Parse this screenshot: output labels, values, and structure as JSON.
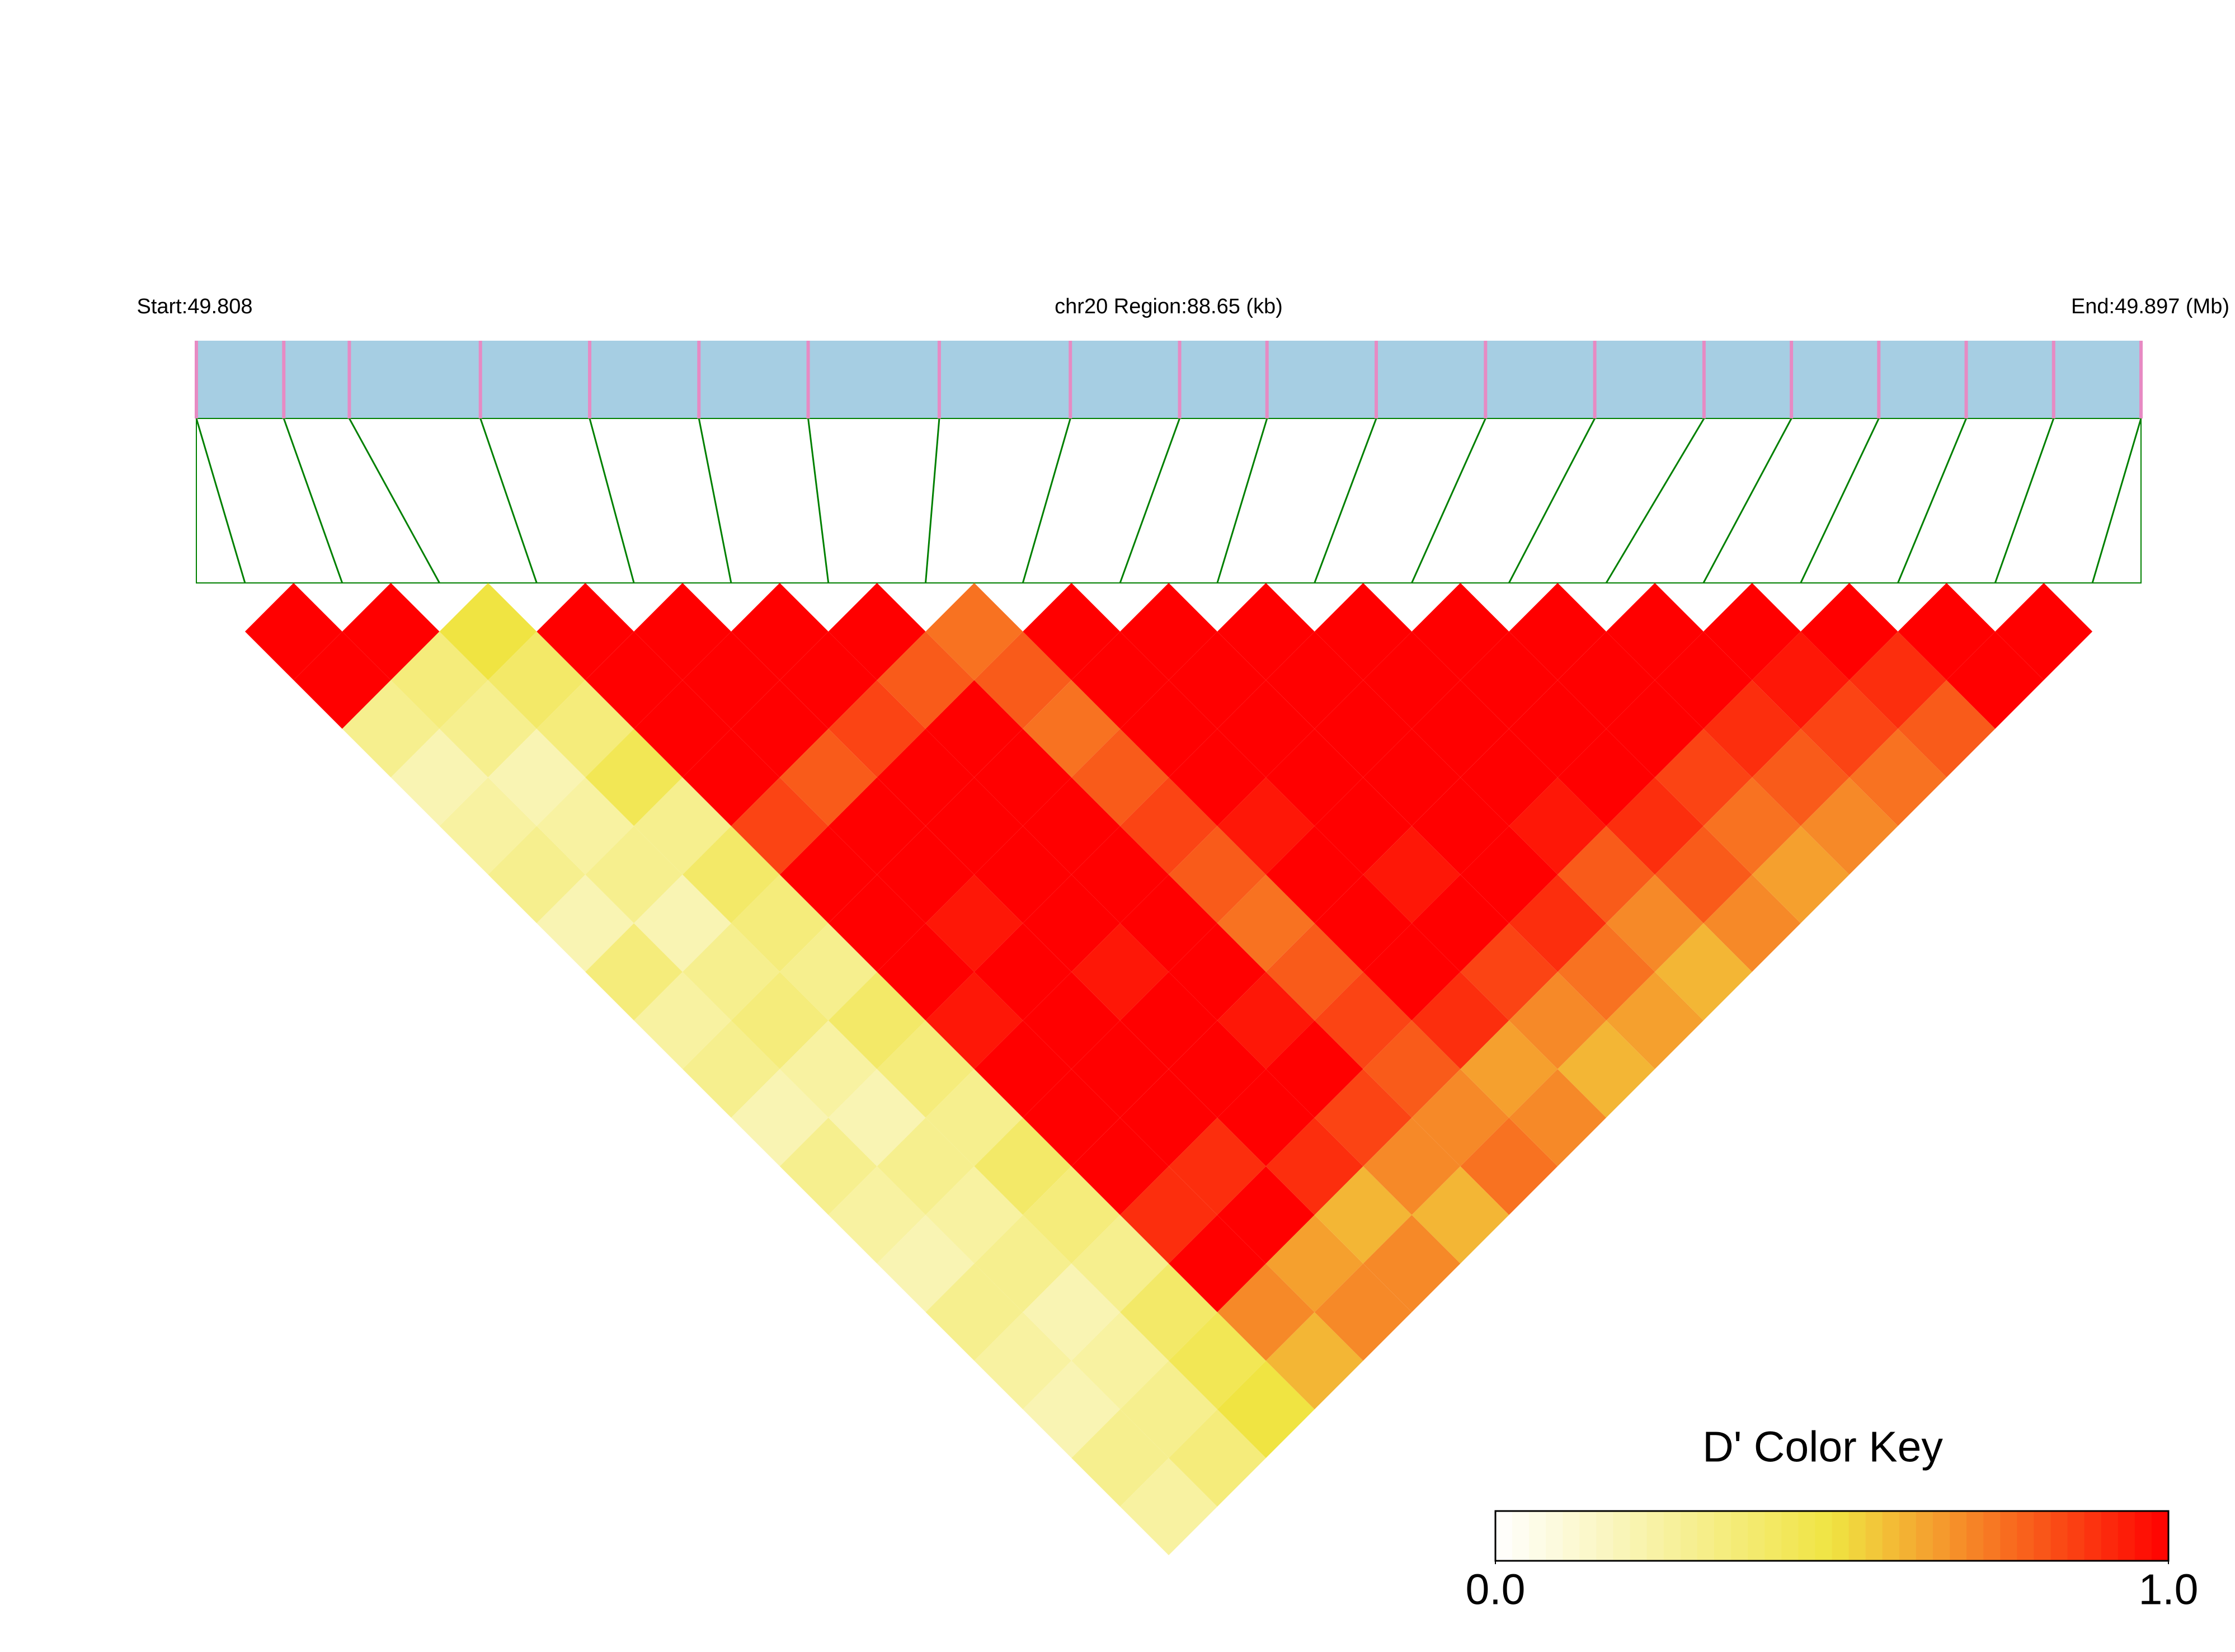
{
  "chart_data": {
    "type": "ld_heatmap",
    "start_label": "Start:49.808",
    "region_label": "chr20 Region:88.65 (kb)",
    "end_label": "End:49.897 (Mb)",
    "key_title": "D' Color Key",
    "xlim": [
      49.808,
      49.897
    ],
    "positions": [
      49.808,
      49.812,
      49.815,
      49.821,
      49.826,
      49.831,
      49.836,
      49.842,
      49.848,
      49.853,
      49.857,
      49.862,
      49.867,
      49.872,
      49.877,
      49.881,
      49.885,
      49.889,
      49.893,
      49.897
    ],
    "ld": [
      [
        1.0,
        1.0,
        0.3,
        0.2,
        0.25,
        0.3,
        0.2,
        0.35,
        0.25,
        0.3,
        0.2,
        0.3,
        0.25,
        0.2,
        0.3,
        0.25,
        0.2,
        0.3,
        0.25
      ],
      [
        1.0,
        0.35,
        0.3,
        0.2,
        0.25,
        0.3,
        0.2,
        0.3,
        0.35,
        0.25,
        0.2,
        0.3,
        0.25,
        0.3,
        0.2,
        0.25,
        0.3,
        0.35
      ],
      [
        0.5,
        0.4,
        0.35,
        0.45,
        0.3,
        0.4,
        0.35,
        0.3,
        0.4,
        0.35,
        0.3,
        0.4,
        0.35,
        0.3,
        0.4,
        0.45,
        0.5
      ],
      [
        1.0,
        1.0,
        1.0,
        1.0,
        0.85,
        1.0,
        1.0,
        1.0,
        0.95,
        1.0,
        1.0,
        1.0,
        0.9,
        1.0,
        0.7,
        0.6
      ],
      [
        1.0,
        1.0,
        1.0,
        0.8,
        1.0,
        1.0,
        0.95,
        1.0,
        1.0,
        1.0,
        1.0,
        0.9,
        1.0,
        0.65,
        0.7
      ],
      [
        1.0,
        1.0,
        0.85,
        1.0,
        1.0,
        1.0,
        1.0,
        0.95,
        1.0,
        1.0,
        1.0,
        0.9,
        0.6,
        0.7
      ],
      [
        1.0,
        0.8,
        1.0,
        1.0,
        1.0,
        1.0,
        1.0,
        1.0,
        0.95,
        1.0,
        0.85,
        0.7,
        0.6
      ],
      [
        0.75,
        0.8,
        0.75,
        0.8,
        0.85,
        0.8,
        0.75,
        0.8,
        0.85,
        0.8,
        0.7,
        0.75
      ],
      [
        1.0,
        1.0,
        1.0,
        1.0,
        0.95,
        1.0,
        1.0,
        1.0,
        0.9,
        0.65,
        0.7
      ],
      [
        1.0,
        1.0,
        1.0,
        1.0,
        1.0,
        0.95,
        1.0,
        0.85,
        0.7,
        0.6
      ],
      [
        1.0,
        1.0,
        1.0,
        1.0,
        1.0,
        1.0,
        0.9,
        0.75,
        0.65
      ],
      [
        1.0,
        1.0,
        1.0,
        1.0,
        0.95,
        0.8,
        0.7,
        0.6
      ],
      [
        1.0,
        1.0,
        1.0,
        1.0,
        0.9,
        0.8,
        0.7
      ],
      [
        1.0,
        1.0,
        1.0,
        0.85,
        0.75,
        0.65
      ],
      [
        1.0,
        1.0,
        0.9,
        0.8,
        0.7
      ],
      [
        1.0,
        0.95,
        0.85,
        0.75
      ],
      [
        1.0,
        0.9,
        0.8
      ],
      [
        1.0,
        1.0
      ],
      [
        1.0
      ]
    ],
    "key_lim": [
      0,
      1
    ],
    "key_ticks": [
      {
        "value": 0,
        "label": "0.0"
      },
      {
        "value": 1,
        "label": "1.0"
      }
    ],
    "colors": [
      "#ffffff",
      "#f0e442",
      "#ff0000"
    ],
    "bar_color": "#a6cee3",
    "snp_color": "#e78ac3",
    "link_color": "#008000"
  }
}
